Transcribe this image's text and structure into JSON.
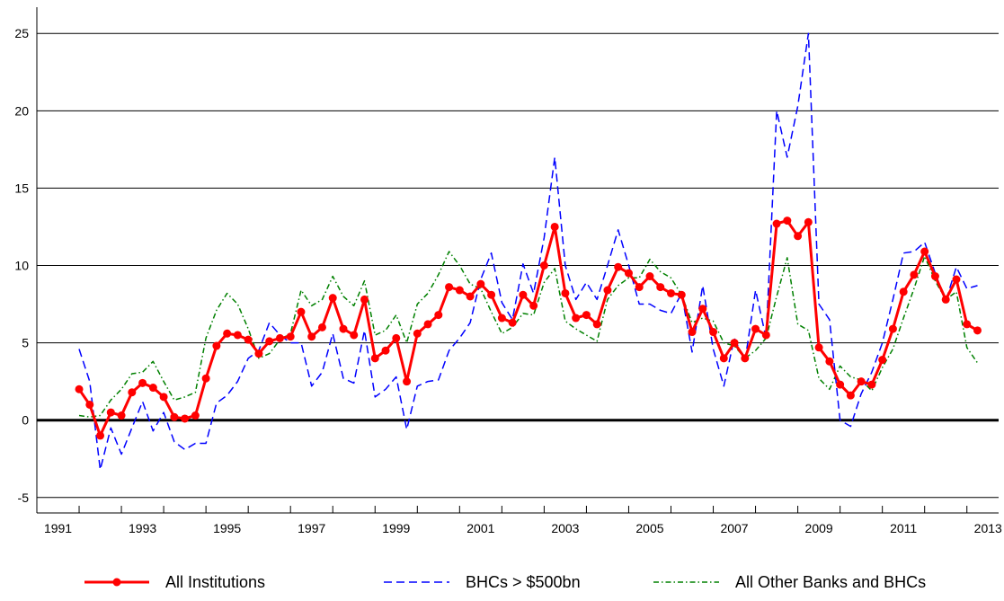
{
  "chart_data": {
    "type": "line",
    "title": "",
    "xlabel": "",
    "ylabel": "",
    "xlim": [
      1990.5,
      2013.25
    ],
    "ylim": [
      -6,
      26
    ],
    "yticks": [
      -5,
      0,
      5,
      10,
      15,
      20,
      25
    ],
    "ytick_labels": [
      "-5",
      "0",
      "5",
      "10",
      "15",
      "20",
      "25"
    ],
    "xtick_labels": [
      {
        "x": 1991,
        "label": "1991"
      },
      {
        "x": 1993,
        "label": "1993"
      },
      {
        "x": 1995,
        "label": "1995"
      },
      {
        "x": 1997,
        "label": "1997"
      },
      {
        "x": 1999,
        "label": "1999"
      },
      {
        "x": 2001,
        "label": "2001"
      },
      {
        "x": 2003,
        "label": "2003"
      },
      {
        "x": 2005,
        "label": "2005"
      },
      {
        "x": 2007,
        "label": "2007"
      },
      {
        "x": 2009,
        "label": "2009"
      },
      {
        "x": 2011,
        "label": "2011"
      },
      {
        "x": 2013,
        "label": "2013"
      }
    ],
    "grid": "horizontal",
    "legend_position": "bottom",
    "colors": {
      "all_institutions": "#ff0000",
      "bhcs": "#0000ff",
      "other": "#008000"
    },
    "series": [
      {
        "name": "All Institutions",
        "style": "solid-markers",
        "values": [
          [
            1991.5,
            2.0
          ],
          [
            1991.75,
            1.0
          ],
          [
            1992.0,
            -1.0
          ],
          [
            1992.25,
            0.5
          ],
          [
            1992.5,
            0.3
          ],
          [
            1992.75,
            1.8
          ],
          [
            1993.0,
            2.4
          ],
          [
            1993.25,
            2.1
          ],
          [
            1993.5,
            1.5
          ],
          [
            1993.75,
            0.2
          ],
          [
            1994.0,
            0.1
          ],
          [
            1994.25,
            0.3
          ],
          [
            1994.5,
            2.7
          ],
          [
            1994.75,
            4.8
          ],
          [
            1995.0,
            5.6
          ],
          [
            1995.25,
            5.5
          ],
          [
            1995.5,
            5.2
          ],
          [
            1995.75,
            4.3
          ],
          [
            1996.0,
            5.1
          ],
          [
            1996.25,
            5.3
          ],
          [
            1996.5,
            5.4
          ],
          [
            1996.75,
            7.0
          ],
          [
            1997.0,
            5.4
          ],
          [
            1997.25,
            6.0
          ],
          [
            1997.5,
            7.9
          ],
          [
            1997.75,
            5.9
          ],
          [
            1998.0,
            5.5
          ],
          [
            1998.25,
            7.8
          ],
          [
            1998.5,
            4.0
          ],
          [
            1998.75,
            4.5
          ],
          [
            1999.0,
            5.3
          ],
          [
            1999.25,
            2.5
          ],
          [
            1999.5,
            5.6
          ],
          [
            1999.75,
            6.2
          ],
          [
            2000.0,
            6.8
          ],
          [
            2000.25,
            8.6
          ],
          [
            2000.5,
            8.4
          ],
          [
            2000.75,
            8.0
          ],
          [
            2001.0,
            8.8
          ],
          [
            2001.25,
            8.1
          ],
          [
            2001.5,
            6.6
          ],
          [
            2001.75,
            6.3
          ],
          [
            2002.0,
            8.1
          ],
          [
            2002.25,
            7.4
          ],
          [
            2002.5,
            10.0
          ],
          [
            2002.75,
            12.5
          ],
          [
            2003.0,
            8.2
          ],
          [
            2003.25,
            6.6
          ],
          [
            2003.5,
            6.8
          ],
          [
            2003.75,
            6.2
          ],
          [
            2004.0,
            8.4
          ],
          [
            2004.25,
            9.9
          ],
          [
            2004.5,
            9.5
          ],
          [
            2004.75,
            8.6
          ],
          [
            2005.0,
            9.3
          ],
          [
            2005.25,
            8.6
          ],
          [
            2005.5,
            8.2
          ],
          [
            2005.75,
            8.1
          ],
          [
            2006.0,
            5.7
          ],
          [
            2006.25,
            7.2
          ],
          [
            2006.5,
            5.7
          ],
          [
            2006.75,
            4.0
          ],
          [
            2007.0,
            5.0
          ],
          [
            2007.25,
            4.0
          ],
          [
            2007.5,
            5.9
          ],
          [
            2007.75,
            5.5
          ],
          [
            2008.0,
            12.7
          ],
          [
            2008.25,
            12.9
          ],
          [
            2008.5,
            11.9
          ],
          [
            2008.75,
            12.8
          ],
          [
            2009.0,
            4.7
          ],
          [
            2009.25,
            3.8
          ],
          [
            2009.5,
            2.3
          ],
          [
            2009.75,
            1.6
          ],
          [
            2010.0,
            2.5
          ],
          [
            2010.25,
            2.3
          ],
          [
            2010.5,
            3.9
          ],
          [
            2010.75,
            5.9
          ],
          [
            2011.0,
            8.3
          ],
          [
            2011.25,
            9.4
          ],
          [
            2011.5,
            10.9
          ],
          [
            2011.75,
            9.3
          ],
          [
            2012.0,
            7.8
          ],
          [
            2012.25,
            9.1
          ],
          [
            2012.5,
            6.2
          ],
          [
            2012.75,
            5.8
          ]
        ]
      },
      {
        "name": "BHCs > $500bn",
        "style": "dashed",
        "values": [
          [
            1991.5,
            4.6
          ],
          [
            1991.75,
            2.5
          ],
          [
            1992.0,
            -3.2
          ],
          [
            1992.25,
            -0.5
          ],
          [
            1992.5,
            -2.2
          ],
          [
            1992.75,
            -0.5
          ],
          [
            1993.0,
            1.2
          ],
          [
            1993.25,
            -0.7
          ],
          [
            1993.5,
            0.5
          ],
          [
            1993.75,
            -1.4
          ],
          [
            1994.0,
            -1.9
          ],
          [
            1994.25,
            -1.5
          ],
          [
            1994.5,
            -1.5
          ],
          [
            1994.75,
            1.1
          ],
          [
            1995.0,
            1.6
          ],
          [
            1995.25,
            2.5
          ],
          [
            1995.5,
            4.0
          ],
          [
            1995.75,
            4.5
          ],
          [
            1996.0,
            6.3
          ],
          [
            1996.25,
            5.5
          ],
          [
            1996.5,
            5.0
          ],
          [
            1996.75,
            5.0
          ],
          [
            1997.0,
            2.2
          ],
          [
            1997.25,
            3.1
          ],
          [
            1997.5,
            5.6
          ],
          [
            1997.75,
            2.7
          ],
          [
            1998.0,
            2.4
          ],
          [
            1998.25,
            5.8
          ],
          [
            1998.5,
            1.5
          ],
          [
            1998.75,
            2.0
          ],
          [
            1999.0,
            2.8
          ],
          [
            1999.25,
            -0.6
          ],
          [
            1999.5,
            2.2
          ],
          [
            1999.75,
            2.5
          ],
          [
            2000.0,
            2.6
          ],
          [
            2000.25,
            4.5
          ],
          [
            2000.5,
            5.3
          ],
          [
            2000.75,
            6.3
          ],
          [
            2001.0,
            9.1
          ],
          [
            2001.25,
            10.8
          ],
          [
            2001.5,
            7.6
          ],
          [
            2001.75,
            6.5
          ],
          [
            2002.0,
            10.1
          ],
          [
            2002.25,
            8.2
          ],
          [
            2002.5,
            11.8
          ],
          [
            2002.75,
            17.0
          ],
          [
            2003.0,
            10.0
          ],
          [
            2003.25,
            7.8
          ],
          [
            2003.5,
            8.9
          ],
          [
            2003.75,
            7.8
          ],
          [
            2004.0,
            10.0
          ],
          [
            2004.25,
            12.3
          ],
          [
            2004.5,
            10.0
          ],
          [
            2004.75,
            7.5
          ],
          [
            2005.0,
            7.5
          ],
          [
            2005.25,
            7.1
          ],
          [
            2005.5,
            6.9
          ],
          [
            2005.75,
            8.2
          ],
          [
            2006.0,
            4.4
          ],
          [
            2006.25,
            8.7
          ],
          [
            2006.5,
            4.6
          ],
          [
            2006.75,
            2.2
          ],
          [
            2007.0,
            5.3
          ],
          [
            2007.25,
            3.8
          ],
          [
            2007.5,
            8.4
          ],
          [
            2007.75,
            5.3
          ],
          [
            2008.0,
            20.0
          ],
          [
            2008.25,
            17.0
          ],
          [
            2008.5,
            20.3
          ],
          [
            2008.75,
            25.0
          ],
          [
            2009.0,
            7.5
          ],
          [
            2009.25,
            6.5
          ],
          [
            2009.5,
            0.0
          ],
          [
            2009.75,
            -0.4
          ],
          [
            2010.0,
            1.7
          ],
          [
            2010.25,
            3.1
          ],
          [
            2010.5,
            5.0
          ],
          [
            2010.75,
            7.8
          ],
          [
            2011.0,
            10.8
          ],
          [
            2011.25,
            10.9
          ],
          [
            2011.5,
            11.5
          ],
          [
            2011.75,
            9.5
          ],
          [
            2012.0,
            7.7
          ],
          [
            2012.25,
            9.9
          ],
          [
            2012.5,
            8.5
          ],
          [
            2012.75,
            8.7
          ]
        ]
      },
      {
        "name": "All Other Banks and BHCs",
        "style": "dash-dot",
        "values": [
          [
            1991.5,
            0.3
          ],
          [
            1991.75,
            0.2
          ],
          [
            1992.0,
            0.3
          ],
          [
            1992.25,
            1.3
          ],
          [
            1992.5,
            2.0
          ],
          [
            1992.75,
            3.0
          ],
          [
            1993.0,
            3.1
          ],
          [
            1993.25,
            3.8
          ],
          [
            1993.5,
            2.5
          ],
          [
            1993.75,
            1.3
          ],
          [
            1994.0,
            1.5
          ],
          [
            1994.25,
            1.8
          ],
          [
            1994.5,
            5.3
          ],
          [
            1994.75,
            7.1
          ],
          [
            1995.0,
            8.2
          ],
          [
            1995.25,
            7.5
          ],
          [
            1995.5,
            5.9
          ],
          [
            1995.75,
            4.0
          ],
          [
            1996.0,
            4.3
          ],
          [
            1996.25,
            5.2
          ],
          [
            1996.5,
            5.6
          ],
          [
            1996.75,
            8.4
          ],
          [
            1997.0,
            7.4
          ],
          [
            1997.25,
            7.8
          ],
          [
            1997.5,
            9.3
          ],
          [
            1997.75,
            8.0
          ],
          [
            1998.0,
            7.4
          ],
          [
            1998.25,
            9.0
          ],
          [
            1998.5,
            5.5
          ],
          [
            1998.75,
            5.8
          ],
          [
            1999.0,
            6.8
          ],
          [
            1999.25,
            5.0
          ],
          [
            1999.5,
            7.5
          ],
          [
            1999.75,
            8.2
          ],
          [
            2000.0,
            9.4
          ],
          [
            2000.25,
            10.9
          ],
          [
            2000.5,
            10.0
          ],
          [
            2000.75,
            8.8
          ],
          [
            2001.0,
            8.5
          ],
          [
            2001.25,
            7.0
          ],
          [
            2001.5,
            5.6
          ],
          [
            2001.75,
            6.0
          ],
          [
            2002.0,
            6.9
          ],
          [
            2002.25,
            6.8
          ],
          [
            2002.5,
            8.9
          ],
          [
            2002.75,
            9.8
          ],
          [
            2003.0,
            6.4
          ],
          [
            2003.25,
            5.9
          ],
          [
            2003.5,
            5.5
          ],
          [
            2003.75,
            5.1
          ],
          [
            2004.0,
            7.8
          ],
          [
            2004.25,
            8.7
          ],
          [
            2004.5,
            9.2
          ],
          [
            2004.75,
            9.2
          ],
          [
            2005.0,
            10.4
          ],
          [
            2005.25,
            9.6
          ],
          [
            2005.5,
            9.2
          ],
          [
            2005.75,
            8.1
          ],
          [
            2006.0,
            6.3
          ],
          [
            2006.25,
            6.6
          ],
          [
            2006.5,
            6.4
          ],
          [
            2006.75,
            5.0
          ],
          [
            2007.0,
            4.8
          ],
          [
            2007.25,
            4.0
          ],
          [
            2007.5,
            4.5
          ],
          [
            2007.75,
            5.3
          ],
          [
            2008.0,
            8.0
          ],
          [
            2008.25,
            10.5
          ],
          [
            2008.5,
            6.2
          ],
          [
            2008.75,
            5.8
          ],
          [
            2009.0,
            2.7
          ],
          [
            2009.25,
            2.0
          ],
          [
            2009.5,
            3.5
          ],
          [
            2009.75,
            2.8
          ],
          [
            2010.0,
            2.6
          ],
          [
            2010.25,
            1.9
          ],
          [
            2010.5,
            3.4
          ],
          [
            2010.75,
            4.6
          ],
          [
            2011.0,
            6.6
          ],
          [
            2011.25,
            8.5
          ],
          [
            2011.5,
            10.6
          ],
          [
            2011.75,
            9.0
          ],
          [
            2012.0,
            7.8
          ],
          [
            2012.25,
            8.3
          ],
          [
            2012.5,
            4.7
          ],
          [
            2012.75,
            3.7
          ]
        ]
      }
    ]
  }
}
